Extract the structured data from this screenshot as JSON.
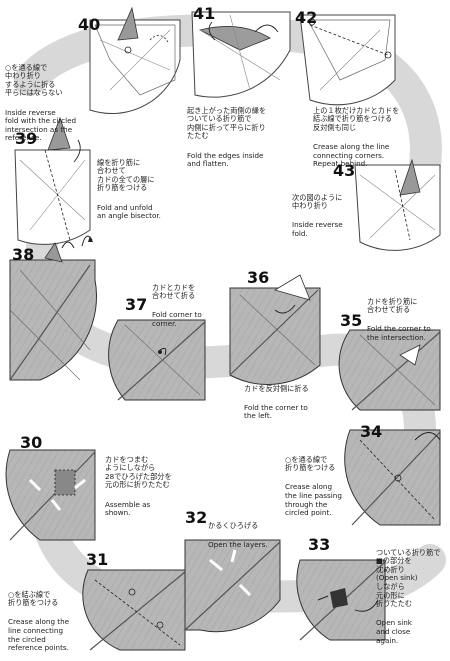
{
  "steps": {
    "s30": {
      "number": "30",
      "jp": "カドをつまむ\nようにしながら\n28でひろげた部分を\n元の形に折りたたむ",
      "en": "Assemble as\nshown."
    },
    "s31": {
      "number": "31",
      "jp": "○を結ぶ線で\n折り筋をつける",
      "en": "Crease along the\nline connecting\nthe circled\nreference points."
    },
    "s32": {
      "number": "32",
      "jp": "かるくひろげる",
      "en": "Open the layers."
    },
    "s33": {
      "number": "33",
      "jp": "ついている折り筋で\n■の部分を\n沈め折り\n(Open sink)\nしながら\n元の形に\n折りたたむ",
      "en": "Open sink\nand close\nagain."
    },
    "s34": {
      "number": "34",
      "jp": "○を通る線で\n折り筋をつける",
      "en": "Crease along\nthe line passing\nthrough the\ncircled point."
    },
    "s35": {
      "number": "35",
      "jp": "カドを折り筋に\n合わせて折る",
      "en": "Fold the corner to\nthe intersection."
    },
    "s36": {
      "number": "36",
      "jp": "カドを反対側に折る",
      "en": "Fold the corner to\nthe left."
    },
    "s37": {
      "number": "37",
      "jp": "カドとカドを\n合わせて折る",
      "en": "Fold corner to\ncorner."
    },
    "s38": {
      "number": "38",
      "jp": "",
      "en": ""
    },
    "s39": {
      "number": "39",
      "jp": "線を折り筋に\n合わせて\nカドの全ての層に\n折り筋をつける",
      "en": "Fold and unfold\nan angle bisector."
    },
    "s40": {
      "number": "40",
      "jp": "○を通る線で\n中わり折り\nするように折る\n平らにはならない",
      "en": "Inside reverse\nfold with the circled\nintersection as the\nreference."
    },
    "s41": {
      "number": "41",
      "jp": "起き上がった両側の縁を\nついている折り筋で\n内側に折って平らに折り\nたたむ",
      "en": "Fold the edges inside\nand flatten."
    },
    "s42": {
      "number": "42",
      "jp": "上の１枚だけカドとカドを\n結ぶ線で折り筋をつける\n反対側も同じ",
      "en": "Crease along the line\nconnecting corners.\nRepeat behind."
    },
    "s43": {
      "number": "43",
      "jp": "次の図のように\n中わり折り",
      "en": "Inside reverse\nfold."
    }
  }
}
